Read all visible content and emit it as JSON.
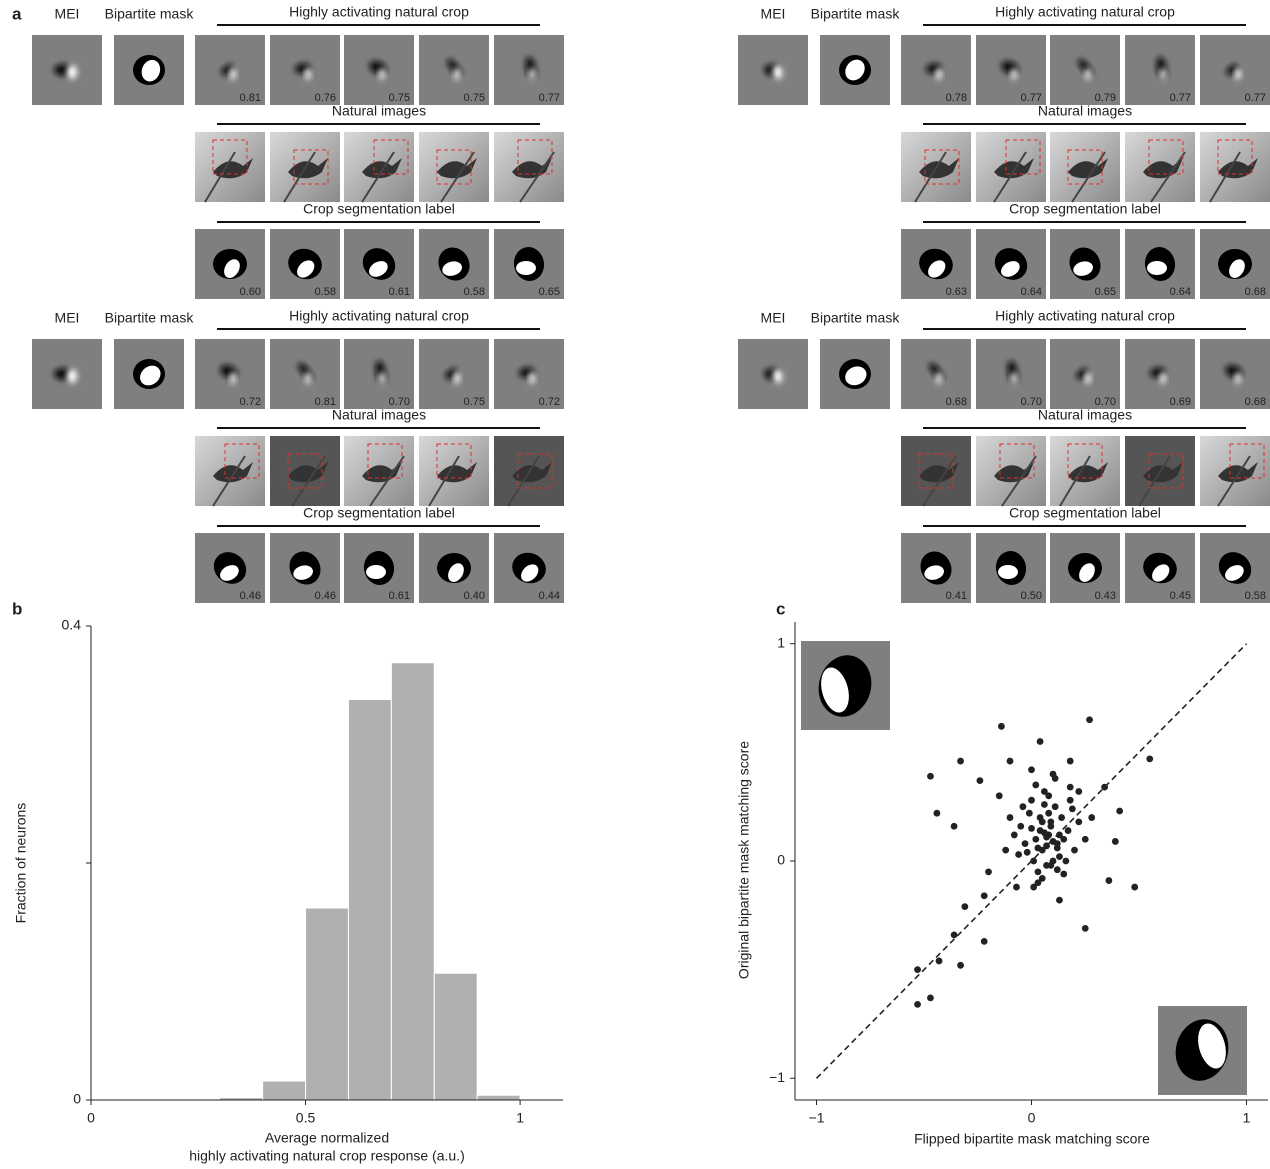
{
  "panel_a": {
    "label": "a",
    "blocks": [
      {
        "mei_label": "MEI",
        "mask_label": "Bipartite mask",
        "crop_title": "Highly activating natural crop",
        "crop_scores": [
          "0.81",
          "0.76",
          "0.75",
          "0.75",
          "0.77"
        ],
        "natural_title": "Natural images",
        "seg_title": "Crop segmentation label",
        "seg_scores": [
          "0.60",
          "0.58",
          "0.61",
          "0.58",
          "0.65"
        ]
      },
      {
        "mei_label": "MEI",
        "mask_label": "Bipartite mask",
        "crop_title": "Highly activating natural crop",
        "crop_scores": [
          "0.78",
          "0.77",
          "0.79",
          "0.77",
          "0.77"
        ],
        "natural_title": "Natural images",
        "seg_title": "Crop segmentation label",
        "seg_scores": [
          "0.63",
          "0.64",
          "0.65",
          "0.64",
          "0.68"
        ]
      },
      {
        "mei_label": "MEI",
        "mask_label": "Bipartite mask",
        "crop_title": "Highly activating natural crop",
        "crop_scores": [
          "0.72",
          "0.81",
          "0.70",
          "0.75",
          "0.72"
        ],
        "natural_title": "Natural images",
        "seg_title": "Crop segmentation label",
        "seg_scores": [
          "0.46",
          "0.46",
          "0.61",
          "0.40",
          "0.44"
        ]
      },
      {
        "mei_label": "MEI",
        "mask_label": "Bipartite mask",
        "crop_title": "Highly activating natural crop",
        "crop_scores": [
          "0.68",
          "0.70",
          "0.70",
          "0.69",
          "0.68"
        ],
        "natural_title": "Natural images",
        "seg_title": "Crop segmentation label",
        "seg_scores": [
          "0.41",
          "0.50",
          "0.43",
          "0.45",
          "0.58"
        ]
      }
    ]
  },
  "chart_data": [
    {
      "type": "histogram",
      "panel_label": "b",
      "ylabel": "Fraction of neurons",
      "xlabel": [
        "Average normalized",
        "highly activating natural crop response (a.u.)"
      ],
      "bins": [
        0.3,
        0.4,
        0.5,
        0.6,
        0.7,
        0.8,
        0.9,
        1.0
      ],
      "values": [
        0.002,
        0.016,
        0.162,
        0.338,
        0.369,
        0.107,
        0.004
      ],
      "color": "#b0b0b0",
      "xlim": [
        0,
        1.1
      ],
      "xticks": [
        0,
        0.5,
        1
      ],
      "ylim": [
        0,
        0.4
      ],
      "yticks": [
        0,
        {
          "value": 0.2,
          "label": null
        },
        0.4
      ]
    },
    {
      "type": "scatter",
      "panel_label": "c",
      "ylabel": "Original bipartite mask matching score",
      "xlabel": "Flipped bipartite mask matching score",
      "color": "#222222",
      "identity_line": true,
      "x": [
        0.02,
        0.05,
        0.08,
        0.1,
        -0.03,
        0.0,
        0.12,
        0.15,
        0.04,
        0.07,
        -0.06,
        0.09,
        0.11,
        0.03,
        0.06,
        0.13,
        -0.01,
        0.08,
        0.17,
        0.2,
        -0.08,
        0.01,
        0.05,
        0.1,
        0.14,
        0.18,
        -0.04,
        0.02,
        0.07,
        0.12,
        0.22,
        -0.1,
        0.0,
        0.06,
        0.09,
        0.16,
        0.03,
        -0.02,
        0.11,
        0.19,
        0.25,
        -0.12,
        0.04,
        0.08,
        0.13,
        0.01,
        0.06,
        0.1,
        -0.05,
        0.15,
        0.28,
        -0.15,
        0.0,
        0.05,
        0.12,
        0.09,
        0.03,
        -0.07,
        0.18,
        0.07,
        -0.47,
        -0.44,
        -0.14,
        0.27,
        0.55,
        0.48,
        0.25,
        -0.53,
        -0.53,
        -0.47,
        -0.43,
        -0.33,
        -0.36,
        -0.22,
        -0.31,
        -0.36,
        -0.33,
        -0.24,
        0.18,
        0.34,
        0.39,
        0.36,
        0.13,
        -0.22,
        -0.2,
        -0.1,
        0.04,
        0.22,
        0.41
      ],
      "y": [
        0.1,
        0.05,
        0.12,
        0.0,
        0.08,
        0.15,
        0.06,
        0.1,
        0.2,
        -0.02,
        0.03,
        0.18,
        0.25,
        -0.05,
        0.13,
        0.02,
        0.22,
        0.3,
        0.14,
        0.05,
        0.12,
        0.0,
        -0.08,
        0.09,
        0.2,
        0.28,
        0.25,
        0.35,
        0.07,
        -0.04,
        0.18,
        0.2,
        0.28,
        0.32,
        0.16,
        0.0,
        -0.1,
        0.04,
        0.38,
        0.24,
        0.1,
        0.05,
        0.14,
        0.22,
        0.12,
        -0.12,
        0.26,
        0.4,
        0.16,
        -0.06,
        0.2,
        0.3,
        0.42,
        0.18,
        0.08,
        -0.02,
        0.06,
        -0.12,
        0.34,
        0.11,
        0.39,
        0.22,
        0.62,
        0.65,
        0.47,
        -0.12,
        -0.31,
        -0.5,
        -0.66,
        -0.63,
        -0.46,
        -0.48,
        -0.34,
        -0.37,
        -0.21,
        0.16,
        0.46,
        0.37,
        0.46,
        0.34,
        0.09,
        -0.09,
        -0.18,
        -0.16,
        -0.05,
        0.46,
        0.55,
        0.32,
        0.23
      ],
      "xlim": [
        -1.1,
        1.1
      ],
      "xticks": [
        {
          "value": -1,
          "label": "−1"
        },
        0,
        1
      ],
      "ylim": [
        -1.1,
        1.1
      ],
      "yticks": [
        {
          "value": -1,
          "label": "−1"
        },
        0,
        1
      ]
    }
  ]
}
